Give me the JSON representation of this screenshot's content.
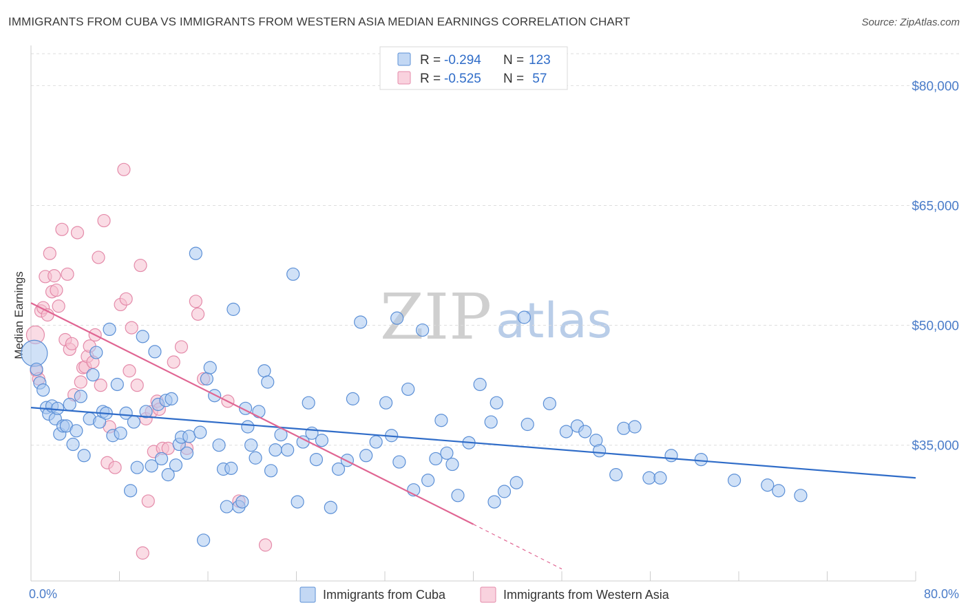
{
  "title": "IMMIGRANTS FROM CUBA VS IMMIGRANTS FROM WESTERN ASIA MEDIAN EARNINGS CORRELATION CHART",
  "source": "Source: ZipAtlas.com",
  "watermark": {
    "zip": "ZIP",
    "atlas": "atlas"
  },
  "colors": {
    "blue_fill": "#aac8f0",
    "blue_stroke": "#5b8fd6",
    "blue_line": "#2f6cc8",
    "pink_fill": "#f6bfd0",
    "pink_stroke": "#e48aa9",
    "pink_line": "#e06592",
    "grid": "#dddddd",
    "axis_text": "#4a7cc9"
  },
  "legend": {
    "r_label": "R =",
    "n_label": "N =",
    "items": [
      {
        "r": "-0.294",
        "n": "123"
      },
      {
        "r": "-0.525",
        "n": " 57"
      }
    ]
  },
  "chart_data": {
    "type": "scatter",
    "xlabel": "",
    "ylabel": "Median Earnings",
    "xlim": [
      0,
      80
    ],
    "ylim": [
      18000,
      84000
    ],
    "x_tick_labels": [
      "0.0%",
      "80.0%"
    ],
    "y_ticks": [
      35000,
      50000,
      65000,
      80000
    ],
    "y_tick_labels": [
      "$35,000",
      "$50,000",
      "$65,000",
      "$80,000"
    ],
    "grid": true,
    "series": [
      {
        "name": "Immigrants from Cuba",
        "trend": {
          "x0": 0,
          "y0": 39700,
          "x1": 80,
          "y1": 30900
        },
        "points": [
          [
            0.3,
            46500
          ],
          [
            0.5,
            44500
          ],
          [
            0.8,
            42800
          ],
          [
            1.1,
            41900
          ],
          [
            1.4,
            39700
          ],
          [
            1.6,
            38900
          ],
          [
            1.9,
            39900
          ],
          [
            2.2,
            38300
          ],
          [
            2.4,
            39600
          ],
          [
            2.6,
            36400
          ],
          [
            2.9,
            37400
          ],
          [
            3.2,
            37400
          ],
          [
            3.5,
            40100
          ],
          [
            3.8,
            35100
          ],
          [
            4.1,
            36800
          ],
          [
            4.5,
            41100
          ],
          [
            4.8,
            33700
          ],
          [
            5.3,
            38300
          ],
          [
            5.6,
            43800
          ],
          [
            5.9,
            46600
          ],
          [
            6.2,
            37900
          ],
          [
            6.5,
            39200
          ],
          [
            6.8,
            39000
          ],
          [
            7.1,
            49500
          ],
          [
            7.4,
            36200
          ],
          [
            7.8,
            42600
          ],
          [
            8.1,
            36500
          ],
          [
            8.6,
            39000
          ],
          [
            9.0,
            29300
          ],
          [
            9.3,
            37900
          ],
          [
            9.6,
            32200
          ],
          [
            10.1,
            48600
          ],
          [
            10.4,
            39200
          ],
          [
            10.9,
            32400
          ],
          [
            11.2,
            46700
          ],
          [
            11.5,
            40100
          ],
          [
            11.8,
            33300
          ],
          [
            12.2,
            40600
          ],
          [
            12.4,
            31300
          ],
          [
            12.7,
            40800
          ],
          [
            13.1,
            32500
          ],
          [
            13.4,
            35100
          ],
          [
            13.6,
            36000
          ],
          [
            14.1,
            34000
          ],
          [
            14.3,
            36100
          ],
          [
            14.9,
            59000
          ],
          [
            15.3,
            36600
          ],
          [
            15.6,
            23100
          ],
          [
            15.9,
            43300
          ],
          [
            16.2,
            44700
          ],
          [
            16.6,
            41200
          ],
          [
            17.0,
            35000
          ],
          [
            17.4,
            32000
          ],
          [
            17.7,
            27300
          ],
          [
            18.1,
            32100
          ],
          [
            18.3,
            52000
          ],
          [
            18.8,
            27300
          ],
          [
            19.1,
            27900
          ],
          [
            19.4,
            39600
          ],
          [
            19.6,
            37300
          ],
          [
            19.9,
            35000
          ],
          [
            20.3,
            33400
          ],
          [
            20.6,
            39200
          ],
          [
            21.1,
            44300
          ],
          [
            21.4,
            42900
          ],
          [
            21.7,
            31800
          ],
          [
            22.1,
            34400
          ],
          [
            22.6,
            36300
          ],
          [
            23.2,
            34400
          ],
          [
            23.7,
            56400
          ],
          [
            24.1,
            27900
          ],
          [
            24.6,
            35400
          ],
          [
            25.1,
            40300
          ],
          [
            25.4,
            36500
          ],
          [
            25.8,
            33200
          ],
          [
            26.3,
            35600
          ],
          [
            27.1,
            27200
          ],
          [
            27.8,
            32000
          ],
          [
            28.6,
            33100
          ],
          [
            29.1,
            40800
          ],
          [
            29.8,
            50400
          ],
          [
            30.3,
            33700
          ],
          [
            31.2,
            35400
          ],
          [
            32.1,
            40300
          ],
          [
            32.6,
            36200
          ],
          [
            33.1,
            50900
          ],
          [
            33.3,
            32900
          ],
          [
            34.1,
            42000
          ],
          [
            34.6,
            29400
          ],
          [
            35.4,
            49400
          ],
          [
            35.9,
            30600
          ],
          [
            36.6,
            33300
          ],
          [
            37.1,
            38100
          ],
          [
            37.6,
            34000
          ],
          [
            38.1,
            32600
          ],
          [
            38.6,
            28700
          ],
          [
            39.6,
            35300
          ],
          [
            40.6,
            42600
          ],
          [
            41.6,
            37900
          ],
          [
            41.9,
            27900
          ],
          [
            42.1,
            40300
          ],
          [
            42.8,
            29200
          ],
          [
            43.9,
            30300
          ],
          [
            44.6,
            51000
          ],
          [
            44.9,
            37600
          ],
          [
            46.9,
            40200
          ],
          [
            48.4,
            36700
          ],
          [
            49.4,
            37400
          ],
          [
            50.1,
            36700
          ],
          [
            51.1,
            35600
          ],
          [
            51.4,
            34300
          ],
          [
            52.9,
            31300
          ],
          [
            53.6,
            37100
          ],
          [
            54.6,
            37300
          ],
          [
            55.9,
            30900
          ],
          [
            56.9,
            30900
          ],
          [
            57.9,
            33700
          ],
          [
            60.6,
            33200
          ],
          [
            63.6,
            30600
          ],
          [
            66.6,
            30000
          ],
          [
            67.6,
            29300
          ],
          [
            69.6,
            28700
          ]
        ]
      },
      {
        "name": "Immigrants from Western Asia",
        "trend": {
          "x0": 0,
          "y0": 52800,
          "x1": 40,
          "y1": 25100
        },
        "trend_dashed": {
          "x0": 40,
          "y0": 25100,
          "x1": 48,
          "y1": 19500
        },
        "points": [
          [
            0.4,
            48800
          ],
          [
            0.5,
            44300
          ],
          [
            0.7,
            43300
          ],
          [
            0.9,
            51800
          ],
          [
            1.1,
            52200
          ],
          [
            1.3,
            56100
          ],
          [
            1.5,
            51300
          ],
          [
            1.7,
            59000
          ],
          [
            1.9,
            54200
          ],
          [
            2.1,
            56200
          ],
          [
            2.3,
            54400
          ],
          [
            2.5,
            52400
          ],
          [
            2.8,
            62000
          ],
          [
            3.1,
            48200
          ],
          [
            3.3,
            56400
          ],
          [
            3.5,
            47000
          ],
          [
            3.7,
            47700
          ],
          [
            3.9,
            41300
          ],
          [
            4.2,
            61600
          ],
          [
            4.5,
            42900
          ],
          [
            4.7,
            44700
          ],
          [
            4.9,
            44800
          ],
          [
            5.1,
            46100
          ],
          [
            5.3,
            47400
          ],
          [
            5.6,
            45400
          ],
          [
            5.8,
            48800
          ],
          [
            6.1,
            58500
          ],
          [
            6.3,
            42500
          ],
          [
            6.6,
            63100
          ],
          [
            6.9,
            32800
          ],
          [
            7.1,
            37300
          ],
          [
            7.6,
            32200
          ],
          [
            8.1,
            52600
          ],
          [
            8.4,
            69500
          ],
          [
            8.6,
            53300
          ],
          [
            8.9,
            44300
          ],
          [
            9.1,
            49700
          ],
          [
            9.6,
            42500
          ],
          [
            9.9,
            57500
          ],
          [
            10.1,
            21500
          ],
          [
            10.4,
            38300
          ],
          [
            10.6,
            28000
          ],
          [
            10.9,
            39200
          ],
          [
            11.1,
            34200
          ],
          [
            11.4,
            40500
          ],
          [
            11.6,
            39500
          ],
          [
            11.9,
            34600
          ],
          [
            12.4,
            34600
          ],
          [
            12.9,
            45400
          ],
          [
            13.6,
            47300
          ],
          [
            14.1,
            34600
          ],
          [
            14.9,
            53000
          ],
          [
            15.1,
            51400
          ],
          [
            15.6,
            43300
          ],
          [
            17.8,
            40500
          ],
          [
            18.8,
            28000
          ],
          [
            21.2,
            22500
          ]
        ]
      }
    ]
  },
  "bottom_legend": [
    "Immigrants from Cuba",
    "Immigrants from Western Asia"
  ]
}
